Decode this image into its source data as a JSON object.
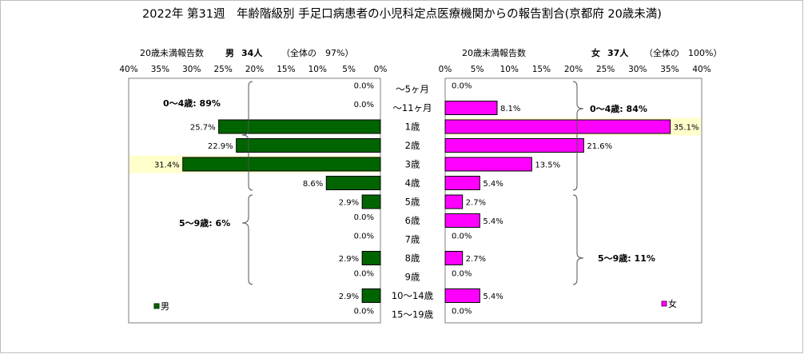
{
  "title": "2022年 第31週　年齢階級別 手足口病患者の小児科定点医療機関からの報告割合(京都府 20歳未満)",
  "male_header": {
    "count_label": "20歳未満報告数",
    "sex": "男",
    "count": "34人",
    "share": "（全体の　97%）"
  },
  "female_header": {
    "count_label": "20歳未満報告数",
    "sex": "女",
    "count": "37人",
    "share": "（全体の　100%）"
  },
  "axis": {
    "ticks": [
      40,
      35,
      30,
      25,
      20,
      15,
      10,
      5,
      0
    ],
    "unit": "%",
    "max": 40
  },
  "male_groups": [
    {
      "label": "0～4歳: 89%"
    },
    {
      "label": "5～9歳: 6%"
    }
  ],
  "female_groups": [
    {
      "label": "0～4歳: 84%"
    },
    {
      "label": "5～9歳: 11%"
    }
  ],
  "legend": {
    "male": "男",
    "female": "女"
  },
  "colors": {
    "male": "#006400",
    "female": "#ff00ff",
    "shade": "#ffffcc",
    "panel_bg": "#ffffff"
  },
  "chart_data": {
    "type": "bar",
    "orientation": "horizontal",
    "title": "2022年 第31週　年齢階級別 手足口病患者の小児科定点医療機関からの報告割合(京都府 20歳未満)",
    "categories": [
      "～5ヶ月",
      "～11ヶ月",
      "1歳",
      "2歳",
      "3歳",
      "4歳",
      "5歳",
      "6歳",
      "7歳",
      "8歳",
      "9歳",
      "10～14歳",
      "15～19歳"
    ],
    "series": [
      {
        "name": "男",
        "values": [
          0.0,
          0.0,
          25.7,
          22.9,
          31.4,
          8.6,
          2.9,
          0.0,
          0.0,
          2.9,
          0.0,
          2.9,
          0.0
        ]
      },
      {
        "name": "女",
        "values": [
          0.0,
          8.1,
          35.1,
          21.6,
          13.5,
          5.4,
          2.7,
          5.4,
          0.0,
          2.7,
          0.0,
          5.4,
          0.0
        ]
      }
    ],
    "xlim": [
      0,
      40
    ],
    "grid": false,
    "legend": "bottom-left / bottom-right"
  }
}
